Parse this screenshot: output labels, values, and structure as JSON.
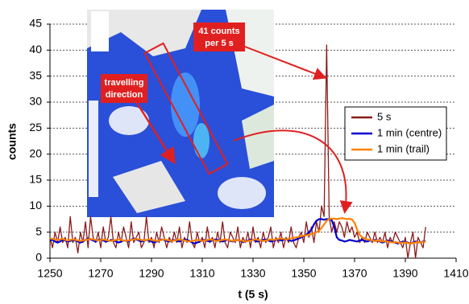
{
  "chart_data": {
    "type": "line",
    "xlabel": "t (5 s)",
    "ylabel": "counts",
    "annotations": [
      [
        "41 counts",
        "per 5 s"
      ],
      [
        "travelling",
        "direction"
      ]
    ],
    "xlim": [
      1250,
      1410
    ],
    "xticks": [
      1250,
      1270,
      1290,
      1310,
      1330,
      1350,
      1370,
      1390,
      1410
    ],
    "ylim": [
      0,
      45
    ],
    "yticks": [
      0,
      5,
      10,
      15,
      20,
      25,
      30,
      35,
      40,
      45
    ],
    "grid": true,
    "x": [
      1250,
      1251,
      1252,
      1253,
      1254,
      1255,
      1256,
      1257,
      1258,
      1259,
      1260,
      1261,
      1262,
      1263,
      1264,
      1265,
      1266,
      1267,
      1268,
      1269,
      1270,
      1271,
      1272,
      1273,
      1274,
      1275,
      1276,
      1277,
      1278,
      1279,
      1280,
      1281,
      1282,
      1283,
      1284,
      1285,
      1286,
      1287,
      1288,
      1289,
      1290,
      1291,
      1292,
      1293,
      1294,
      1295,
      1296,
      1297,
      1298,
      1299,
      1300,
      1301,
      1302,
      1303,
      1304,
      1305,
      1306,
      1307,
      1308,
      1309,
      1310,
      1311,
      1312,
      1313,
      1314,
      1315,
      1316,
      1317,
      1318,
      1319,
      1320,
      1321,
      1322,
      1323,
      1324,
      1325,
      1326,
      1327,
      1328,
      1329,
      1330,
      1331,
      1332,
      1333,
      1334,
      1335,
      1336,
      1337,
      1338,
      1339,
      1340,
      1341,
      1342,
      1343,
      1344,
      1345,
      1346,
      1347,
      1348,
      1349,
      1350,
      1351,
      1352,
      1353,
      1354,
      1355,
      1356,
      1357,
      1358,
      1359,
      1360,
      1361,
      1362,
      1363,
      1364,
      1365,
      1366,
      1367,
      1368,
      1369,
      1370,
      1371,
      1372,
      1373,
      1374,
      1375,
      1376,
      1377,
      1378,
      1379,
      1380,
      1381,
      1382,
      1383,
      1384,
      1385,
      1386,
      1387,
      1388,
      1389,
      1390,
      1391,
      1392,
      1393,
      1394,
      1395,
      1396,
      1397,
      1398
    ],
    "series": [
      {
        "name": "5 s",
        "color": "#8b1a1a",
        "width": 1.3,
        "values": [
          4,
          2,
          5,
          3,
          6,
          3,
          4,
          2,
          8,
          3,
          4,
          1,
          5,
          3,
          7,
          2,
          8,
          4,
          3,
          5,
          2,
          6,
          3,
          4,
          8,
          3,
          2,
          5,
          3,
          6,
          4,
          2,
          7,
          3,
          4,
          5,
          2,
          3,
          8,
          3,
          4,
          2,
          5,
          3,
          6,
          4,
          2,
          4,
          3,
          5,
          3,
          6,
          2,
          4,
          3,
          7,
          3,
          2,
          5,
          3,
          4,
          2,
          6,
          3,
          4,
          2,
          5,
          3,
          7,
          3,
          2,
          5,
          4,
          3,
          6,
          2,
          4,
          3,
          5,
          2,
          6,
          3,
          4,
          2,
          5,
          3,
          4,
          6,
          2,
          4,
          3,
          5,
          2,
          4,
          3,
          6,
          3,
          2,
          4,
          5,
          3,
          7,
          4,
          6,
          3,
          7,
          5,
          10,
          8,
          41,
          8,
          5,
          7,
          5,
          7,
          6,
          4,
          7,
          5,
          6,
          4,
          5,
          3,
          4,
          3,
          5,
          4,
          3,
          5,
          3,
          4,
          3,
          5,
          2,
          4,
          3,
          5,
          4,
          3,
          2,
          4,
          0,
          3,
          5,
          0,
          4,
          3,
          2,
          6
        ]
      },
      {
        "name": "1 min (centre)",
        "color": "#0000cc",
        "width": 2.2,
        "values": [
          3.5,
          3.5,
          3.2,
          3,
          3.2,
          3.5,
          3.4,
          3.2,
          3.3,
          3.5,
          3.4,
          3.2,
          3,
          3.2,
          3.5,
          3.8,
          3.6,
          3.4,
          3.2,
          3.5,
          3.6,
          3.4,
          3.2,
          3.3,
          3.5,
          3.4,
          3.2,
          3,
          3.2,
          3.4,
          3.3,
          3.2,
          3.5,
          3.8,
          3.6,
          3.4,
          3.2,
          3.3,
          3.5,
          3.4,
          3.2,
          3,
          3.2,
          3.4,
          3.6,
          3.5,
          3.3,
          3.2,
          3.4,
          3.5,
          3.3,
          3.2,
          3.4,
          3.6,
          3.5,
          3.3,
          3,
          2.8,
          3,
          3.2,
          3.4,
          3.5,
          3.3,
          3.2,
          3.4,
          3.6,
          3.5,
          3.3,
          3.2,
          3.4,
          3.5,
          3.3,
          3.2,
          3.4,
          3.5,
          3.3,
          3.1,
          3.2,
          3.4,
          3.6,
          3.5,
          3.3,
          3.2,
          3.4,
          3.5,
          3.6,
          3.4,
          3.2,
          3.3,
          3.5,
          3.6,
          3.4,
          3.5,
          3.7,
          3.5,
          3.3,
          3.4,
          3.6,
          3.8,
          4,
          4.2,
          4.5,
          5,
          5.5,
          6.5,
          7.2,
          7.5,
          7.5,
          7.4,
          7.5,
          7.5,
          7.3,
          6,
          4,
          3.5,
          3.4,
          3.2,
          3.3,
          3.5,
          3.4,
          3.3,
          3.2,
          3.4,
          3.5,
          3.3,
          3.2,
          3.4,
          3.3,
          3.5,
          3.4,
          3.2,
          3,
          3.2,
          3.4,
          3.3,
          3.1,
          3,
          2.8,
          3,
          3.2,
          3.1,
          3,
          2.8,
          3,
          3.2,
          3.1,
          3,
          3.2,
          3.3
        ]
      },
      {
        "name": "1 min (trail)",
        "color": "#ff8000",
        "width": 2.2,
        "values": [
          3.8,
          3.7,
          3.6,
          3.5,
          3.6,
          3.7,
          3.5,
          3.4,
          3.5,
          3.6,
          3.5,
          3.4,
          3.3,
          3.4,
          3.5,
          3.6,
          3.7,
          3.6,
          3.5,
          3.4,
          3.5,
          3.6,
          3.5,
          3.4,
          3.3,
          3.4,
          3.5,
          3.6,
          3.5,
          3.4,
          3.3,
          3.4,
          3.5,
          3.6,
          3.7,
          3.6,
          3.5,
          3.4,
          3.5,
          3.6,
          3.5,
          3.4,
          3.3,
          3.4,
          3.5,
          3.6,
          3.5,
          3.4,
          3.3,
          3.4,
          3.5,
          3.6,
          3.5,
          3.4,
          3.3,
          3.2,
          3.3,
          3.4,
          3.5,
          3.4,
          3.3,
          3.4,
          3.5,
          3.6,
          3.5,
          3.4,
          3.3,
          3.4,
          3.5,
          3.6,
          3.5,
          3.4,
          3.3,
          3.4,
          3.5,
          3.4,
          3.3,
          3.2,
          3.3,
          3.4,
          3.5,
          3.6,
          3.5,
          3.4,
          3.3,
          3.4,
          3.5,
          3.6,
          3.5,
          3.6,
          3.7,
          3.8,
          3.7,
          3.6,
          3.7,
          3.8,
          3.9,
          4,
          4.1,
          4.2,
          4.3,
          4.4,
          4.5,
          4.6,
          4.8,
          5,
          5.3,
          5.8,
          6.5,
          7.2,
          7.5,
          7.6,
          7.6,
          7.5,
          7.6,
          7.7,
          7.6,
          7.5,
          7.6,
          7.4,
          6.8,
          5.5,
          4.5,
          4,
          3.8,
          3.6,
          3.5,
          3.4,
          3.3,
          3.4,
          3.3,
          3.2,
          3.3,
          3.2,
          3.1,
          3,
          3.1,
          3,
          2.9,
          3,
          3,
          2.9,
          2.8,
          2.9,
          3,
          3.1,
          3,
          3.1,
          3.2
        ]
      }
    ]
  }
}
